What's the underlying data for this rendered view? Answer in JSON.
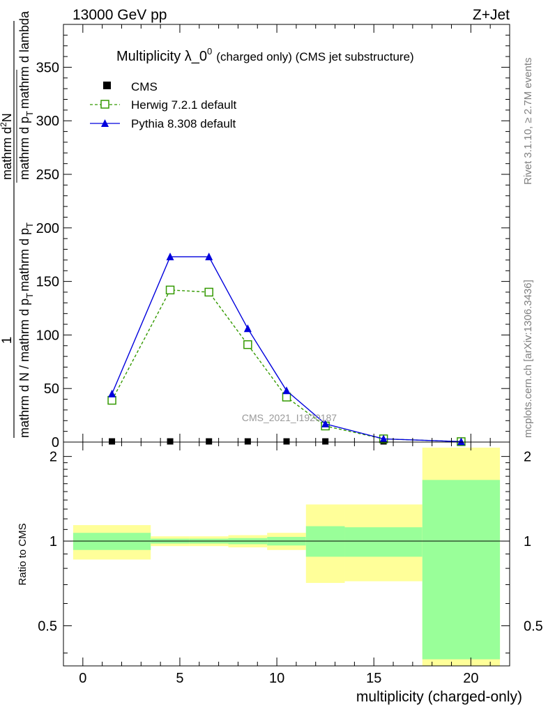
{
  "header": {
    "energy_label": "13000 GeV pp",
    "process_label": "Z+Jet"
  },
  "side_labels": {
    "rivet": "Rivet 3.1.10, ≥ 2.7M events",
    "mcplots": "mcplots.cern.ch [arXiv:1306.3436]"
  },
  "colors": {
    "cms": "#000000",
    "herwig": "#339900",
    "pythia": "#0000dd",
    "band_inner": "#99ff99",
    "band_outer": "#ffff99"
  },
  "chart_data": [
    {
      "type": "line",
      "panel": "main",
      "title": {
        "main": "Multiplicity λ_0",
        "superscript": "0",
        "suffix": "(charged only) (CMS jet substructure)"
      },
      "ylabel": {
        "frac1": "1",
        "denominator1": "mathrm d N / mathrm d p",
        "sub1": "T",
        "mid": "mathrm d p",
        "sub2": "T",
        "numerator2": "mathrm d",
        "superscript2": "2",
        "rest2": "N",
        "denominator2": "mathrm d p",
        "sub3": "T",
        "tail": "mathrm d lambda"
      },
      "watermark": "CMS_2021_I1920187",
      "ylim": [
        0,
        390
      ],
      "xlim": [
        -1,
        22
      ],
      "y_ticks": [
        0,
        50,
        100,
        150,
        200,
        250,
        300,
        350
      ],
      "legend": {
        "position": "top-left",
        "entries": [
          "CMS",
          "Herwig 7.2.1 default",
          "Pythia 8.308 default"
        ]
      },
      "series": [
        {
          "name": "CMS",
          "marker": "filled-square",
          "x": [
            1.5,
            4.5,
            6.5,
            8.5,
            10.5,
            12.5,
            15.5,
            19.5
          ],
          "y": [
            0.3,
            0.3,
            0.3,
            0.3,
            0.3,
            0.3,
            0.3,
            0.3
          ]
        },
        {
          "name": "Herwig 7.2.1 default",
          "marker": "open-square",
          "linestyle": "dashed",
          "x": [
            1.5,
            4.5,
            6.5,
            8.5,
            10.5,
            12.5,
            15.5,
            19.5
          ],
          "y": [
            39,
            142,
            140,
            91,
            42,
            15,
            3,
            0.4
          ]
        },
        {
          "name": "Pythia 8.308 default",
          "marker": "filled-triangle",
          "linestyle": "solid",
          "x": [
            1.5,
            4.5,
            6.5,
            8.5,
            10.5,
            12.5,
            15.5,
            19.5
          ],
          "y": [
            45,
            173,
            173,
            106,
            48,
            17,
            3,
            0.4
          ]
        }
      ]
    },
    {
      "type": "area",
      "panel": "ratio",
      "ylabel": "Ratio to CMS",
      "xlabel": "multiplicity (charged-only)",
      "xlim": [
        -1,
        22
      ],
      "ylim": [
        0.36,
        2.25
      ],
      "y_ticks": [
        0.5,
        1,
        2
      ],
      "x_ticks": [
        0,
        5,
        10,
        15,
        20
      ],
      "reference_line": 1,
      "bins": [
        {
          "xlo": -0.5,
          "xhi": 3.5,
          "inner": [
            0.93,
            1.07
          ],
          "outer": [
            0.86,
            1.14
          ]
        },
        {
          "xlo": 3.5,
          "xhi": 5.5,
          "inner": [
            0.98,
            1.02
          ],
          "outer": [
            0.96,
            1.04
          ]
        },
        {
          "xlo": 5.5,
          "xhi": 7.5,
          "inner": [
            0.98,
            1.02
          ],
          "outer": [
            0.96,
            1.04
          ]
        },
        {
          "xlo": 7.5,
          "xhi": 9.5,
          "inner": [
            0.975,
            1.025
          ],
          "outer": [
            0.95,
            1.05
          ]
        },
        {
          "xlo": 9.5,
          "xhi": 11.5,
          "inner": [
            0.965,
            1.035
          ],
          "outer": [
            0.93,
            1.07
          ]
        },
        {
          "xlo": 11.5,
          "xhi": 13.5,
          "inner": [
            0.88,
            1.13
          ],
          "outer": [
            0.71,
            1.35
          ]
        },
        {
          "xlo": 13.5,
          "xhi": 17.5,
          "inner": [
            0.88,
            1.12
          ],
          "outer": [
            0.72,
            1.35
          ]
        },
        {
          "xlo": 17.5,
          "xhi": 21.5,
          "inner": [
            0.38,
            1.65
          ],
          "outer": [
            0.34,
            2.15
          ]
        }
      ]
    }
  ]
}
